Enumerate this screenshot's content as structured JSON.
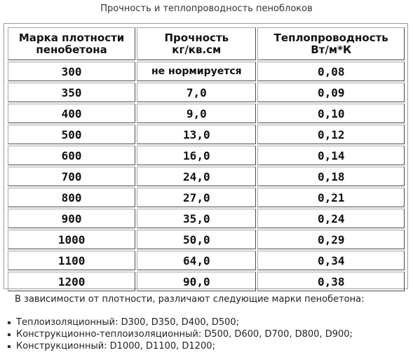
{
  "caption": "Прочность и теплопроводность пеноблоков",
  "table": {
    "headers": [
      [
        "Марка плотности",
        "пенобетона"
      ],
      [
        "Прочность",
        "кг/кв.см"
      ],
      [
        "Теплопроводность",
        "Вт/м*К"
      ]
    ],
    "rows": [
      [
        "300",
        "не нормируется",
        "0,08"
      ],
      [
        "350",
        "7,0",
        "0,09"
      ],
      [
        "400",
        "9,0",
        "0,10"
      ],
      [
        "500",
        "13,0",
        "0,12"
      ],
      [
        "600",
        "16,0",
        "0,14"
      ],
      [
        "700",
        "24,0",
        "0,18"
      ],
      [
        "800",
        "27,0",
        "0,21"
      ],
      [
        "900",
        "35,0",
        "0,24"
      ],
      [
        "1000",
        "50,0",
        "0,29"
      ],
      [
        "1100",
        "64,0",
        "0,34"
      ],
      [
        "1200",
        "90,0",
        "0,38"
      ]
    ]
  },
  "intro": "В зависимости от плотности, различают следующие марки пенобетона:",
  "grades": [
    "Теплоизоляционный: D300, D350, D400, D500;",
    "Конструкционно-теплоизоляционный: D500, D600, D700, D800, D900;",
    "Конструкционный: D1000, D1100, D1200;"
  ],
  "colors": {
    "text": "#222222",
    "border_light": "#a5a5a5",
    "border_dark": "#4a4a4a",
    "frame": "#9a9a9a"
  }
}
